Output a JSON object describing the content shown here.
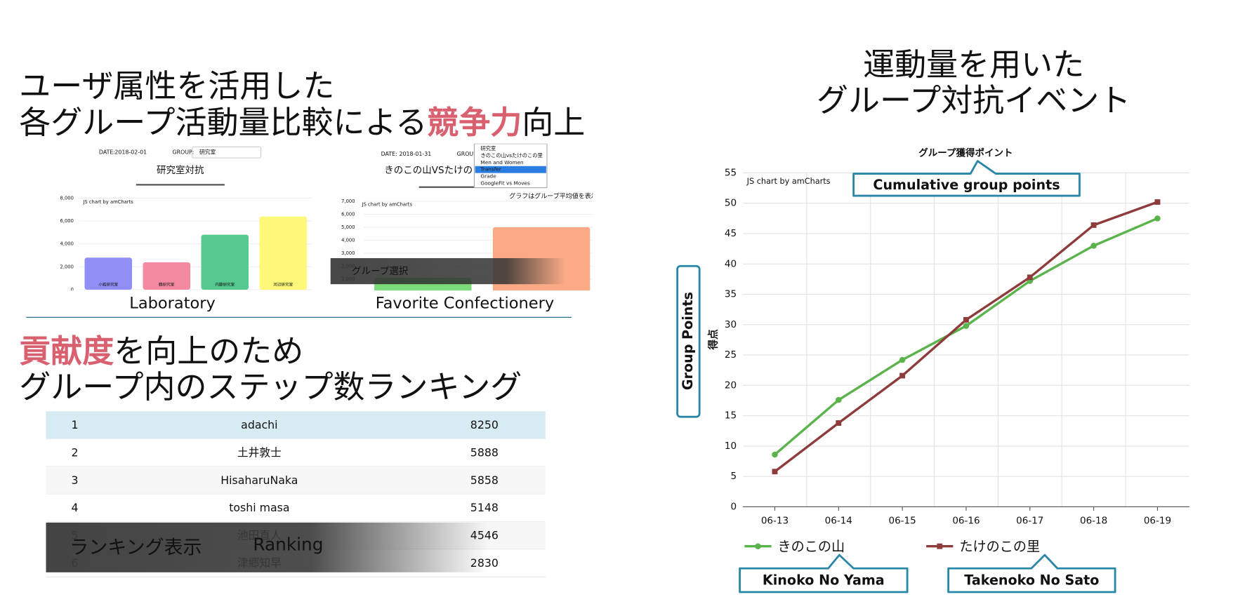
{
  "heading1": {
    "line1": "ユーザ属性を活用した",
    "line2": "各グループ活動量比較による",
    "emphasis": "競争力",
    "line2_end": "向上"
  },
  "heading2": {
    "emphasis": "貢献度",
    "line1_end": "を向上のため",
    "line2": "グループ内のステップ数ランキング"
  },
  "ranking": {
    "rows": [
      [
        1,
        "adachi",
        8250
      ],
      [
        2,
        "土井敦士",
        5888
      ],
      [
        3,
        "HisaharuNaka",
        5858
      ],
      [
        4,
        "toshi masa",
        5148
      ],
      [
        5,
        "池田直人",
        4546
      ],
      [
        6,
        "津郷知早",
        2830
      ]
    ],
    "overlay": "ランキング表示",
    "caption": "Ranking"
  },
  "event_title": {
    "line1": "運動量を用いた",
    "line2": "グループ対抗イベント"
  },
  "chart_data": [
    {
      "type": "bar",
      "title": "研究室対抗",
      "controls": [
        "DATE:",
        "2018-02-01",
        "GROUP:",
        "研究室"
      ],
      "credit": "JS chart by amCharts",
      "categories": [
        "小嶋研究室",
        "鶴研究室",
        "内藤研究室",
        "河辺研究室"
      ],
      "values": [
        2800,
        2400,
        4800,
        6400
      ],
      "colors": [
        "#8f8ff5",
        "#f48aa1",
        "#55c98f",
        "#fdf87a"
      ],
      "ylim": [
        0,
        8000
      ],
      "yticks": [
        0,
        {
          "value": 2000,
          "label": "2,000"
        },
        {
          "value": 4000,
          "label": "4,000"
        },
        {
          "value": 6000,
          "label": "6,000"
        },
        {
          "value": 8000,
          "label": "8,000"
        }
      ],
      "caption": "Laboratory"
    },
    {
      "type": "bar",
      "title": "きのこの山VSたけのこの里",
      "controls": [
        "DATE:",
        "2018-01-31",
        "GROUP"
      ],
      "dropdown": [
        "研究室",
        "きのこの山vsたけのこの里",
        "Men and Women",
        "Transfer",
        "Grade",
        "GoogleFit vs Moves"
      ],
      "dropdown_highlight": 3,
      "note": "グラフはグループ平均値を表示",
      "credit": "JS chart by amCharts",
      "categories": [
        null,
        null
      ],
      "values": [
        1100,
        5000
      ],
      "colors": [
        "#7ddc7a",
        "#fbaa85"
      ],
      "ylim": [
        0,
        7000
      ],
      "yticks": [
        {
          "value": 1000,
          "label": "1,000"
        },
        {
          "value": 2000,
          "label": "2,000"
        },
        {
          "value": 3000,
          "label": "3,000"
        },
        {
          "value": 4000,
          "label": "4,000"
        },
        {
          "value": 5000,
          "label": "5,000"
        },
        {
          "value": 6000,
          "label": "6,000"
        },
        {
          "value": 7000,
          "label": "7,000"
        }
      ],
      "overlay": "グループ選択",
      "caption": "Favorite Confectionery"
    },
    {
      "type": "line",
      "title": "グループ獲得ポイント",
      "credit": "JS chart by amCharts",
      "ylabel": "得点",
      "categories": [
        "06-13",
        "06-14",
        "06-15",
        "06-16",
        "06-17",
        "06-18",
        "06-19"
      ],
      "series": [
        {
          "name": "きのこの山",
          "color": "#5ab34b",
          "values": [
            8.6,
            17.6,
            24.2,
            29.8,
            37.2,
            43,
            47.5
          ]
        },
        {
          "name": "たけのこの里",
          "color": "#8e3b3b",
          "values": [
            5.8,
            13.8,
            21.6,
            30.8,
            37.8,
            46.4,
            50.2
          ]
        }
      ],
      "ylim": [
        0,
        55
      ],
      "yticks": [
        0,
        5,
        10,
        15,
        20,
        25,
        30,
        35,
        40,
        45,
        50,
        55
      ],
      "grid": true,
      "annotations": {
        "title": "Cumulative group points",
        "yaxis": "Group Points",
        "series0": "Kinoko No Yama",
        "series1": "Takenoko No Sato"
      }
    }
  ]
}
